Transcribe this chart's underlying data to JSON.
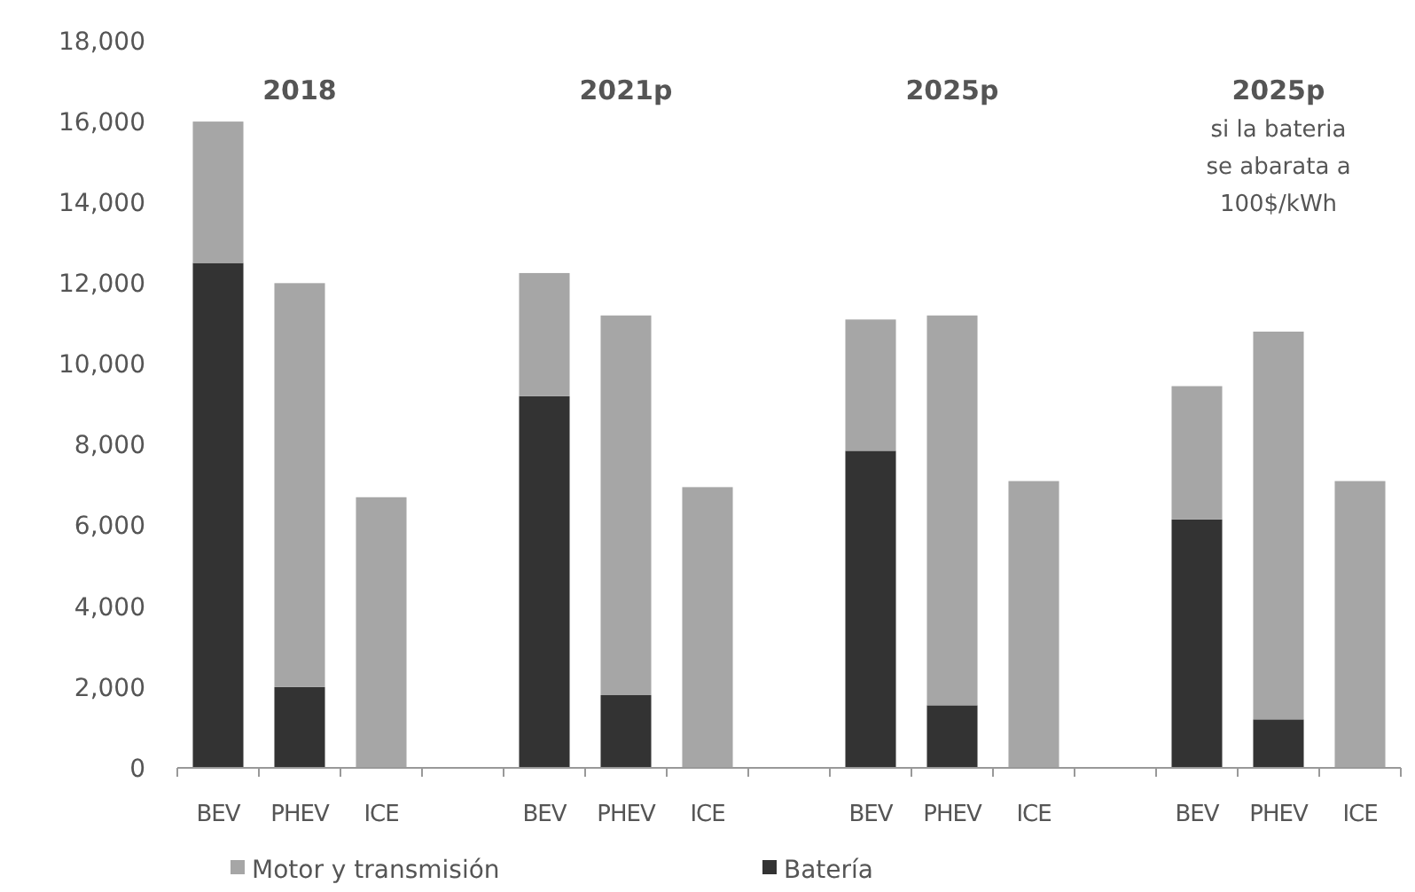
{
  "chart_data": {
    "type": "bar",
    "stacked": true,
    "categories": [
      "BEV",
      "PHEV",
      "ICE",
      null,
      "BEV",
      "PHEV",
      "ICE",
      null,
      "BEV",
      "PHEV",
      "ICE",
      null,
      "BEV",
      "PHEV",
      "ICE"
    ],
    "series": [
      {
        "name": "Batería",
        "color": "#333333",
        "values": [
          12500,
          2000,
          null,
          null,
          9200,
          1800,
          null,
          null,
          7850,
          1550,
          null,
          null,
          6150,
          1200,
          null
        ]
      },
      {
        "name": "Motor y transmisión",
        "color": "#a6a6a6",
        "values": [
          3500,
          10000,
          6700,
          null,
          3050,
          9400,
          6950,
          null,
          3250,
          9650,
          7100,
          null,
          3300,
          9600,
          7100
        ]
      }
    ],
    "ylim": [
      0,
      18000
    ],
    "yticks": [
      {
        "value": 0,
        "label": "0"
      },
      {
        "value": 2000,
        "label": "2,000"
      },
      {
        "value": 4000,
        "label": "4,000"
      },
      {
        "value": 6000,
        "label": "6,000"
      },
      {
        "value": 8000,
        "label": "8,000"
      },
      {
        "value": 10000,
        "label": "10,000"
      },
      {
        "value": 12000,
        "label": "12,000"
      },
      {
        "value": 14000,
        "label": "14,000"
      },
      {
        "value": 16000,
        "label": "16,000"
      },
      {
        "value": 18000,
        "label": "18,000"
      }
    ],
    "annotations": [
      "2018",
      "2021p",
      "2025p",
      "2025p\nsi la bateria\nse abarata a\n100$/kWh"
    ],
    "legend": "bottom"
  }
}
